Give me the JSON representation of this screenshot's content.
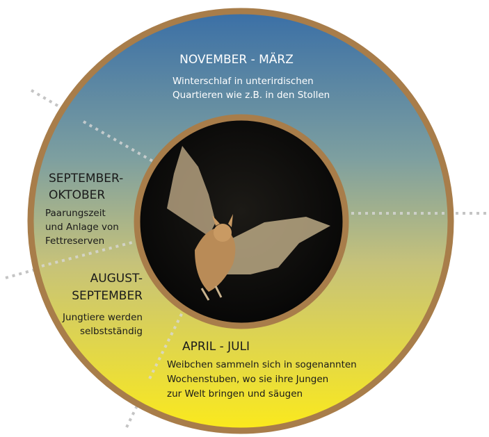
{
  "segments": [
    {
      "title": [
        "NOVEMBER - MÄRZ"
      ],
      "text": [
        "Winterschlaf in unterirdischen",
        "Quartieren wie z.B. in den Stollen"
      ]
    },
    {
      "title": [
        "SEPTEMBER-",
        "OKTOBER"
      ],
      "text": [
        "Paarungszeit",
        "und Anlage von",
        "Fettreserven"
      ]
    },
    {
      "title": [
        "AUGUST-",
        "SEPTEMBER"
      ],
      "text": [
        "Jungtiere werden",
        "selbstständig"
      ]
    },
    {
      "title": [
        "APRIL - JULI"
      ],
      "text": [
        "Weibchen sammeln sich in sogenannten",
        "Wochenstuben, wo sie ihre Jungen",
        "zur Welt bringen und säugen"
      ]
    }
  ]
}
